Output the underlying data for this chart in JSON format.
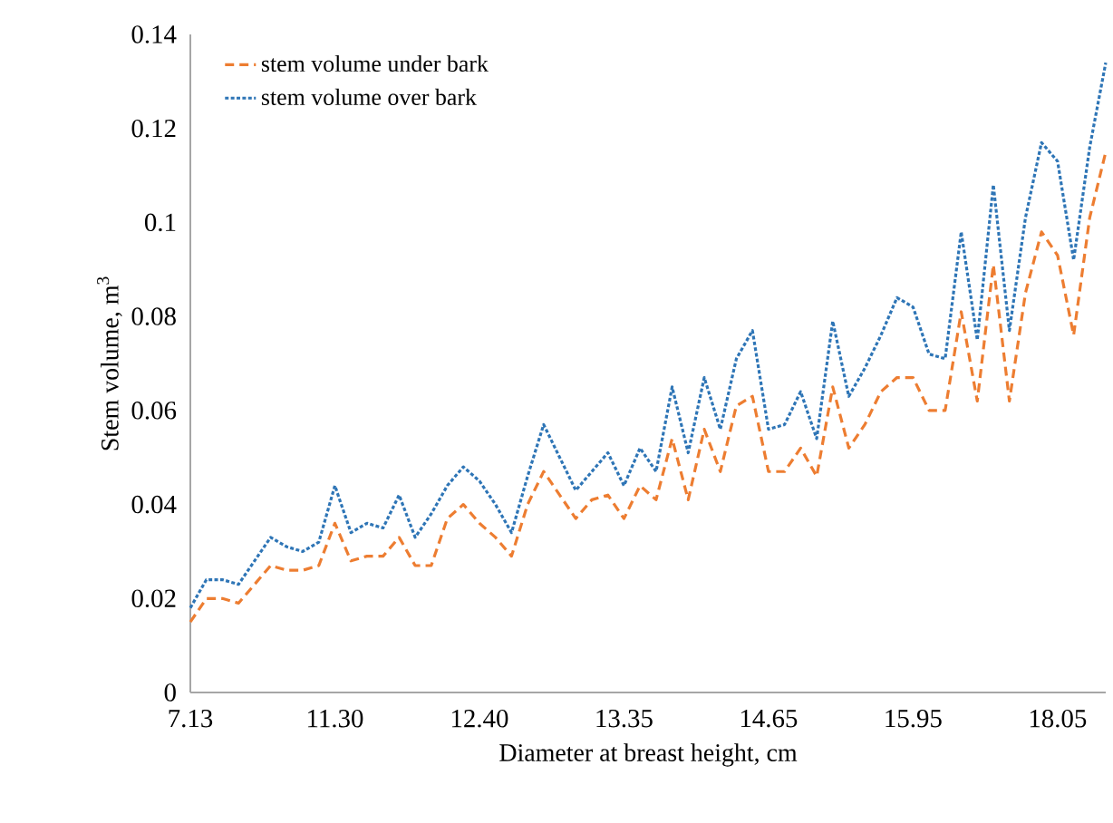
{
  "chart_data": {
    "type": "line",
    "xlabel": "Diameter at breast height, cm",
    "ylabel": "Stem volume, m$^{3}$",
    "categories": [
      "7.13",
      null,
      null,
      null,
      null,
      null,
      null,
      null,
      null,
      "11.30",
      null,
      null,
      null,
      null,
      null,
      null,
      null,
      null,
      "12.40",
      null,
      null,
      null,
      null,
      null,
      null,
      null,
      null,
      "13.35",
      null,
      null,
      null,
      null,
      null,
      null,
      null,
      null,
      "14.65",
      null,
      null,
      null,
      null,
      null,
      null,
      null,
      null,
      "15.95",
      null,
      null,
      null,
      null,
      null,
      null,
      null,
      null,
      "18.05",
      null,
      null,
      null
    ],
    "series": [
      {
        "name": "stem volume under bark",
        "color": "#ed7d31",
        "line_style": "dashed",
        "values": [
          0.015,
          0.02,
          0.02,
          0.019,
          0.023,
          0.027,
          0.026,
          0.026,
          0.027,
          0.036,
          0.028,
          0.029,
          0.029,
          0.033,
          0.027,
          0.027,
          0.037,
          0.04,
          0.036,
          0.033,
          0.029,
          0.04,
          0.047,
          0.042,
          0.037,
          0.041,
          0.042,
          0.037,
          0.044,
          0.041,
          0.054,
          0.041,
          0.056,
          0.047,
          0.061,
          0.063,
          0.047,
          0.047,
          0.052,
          0.046,
          0.065,
          0.052,
          0.057,
          0.064,
          0.067,
          0.067,
          0.06,
          0.06,
          0.081,
          0.062,
          0.091,
          0.062,
          0.085,
          0.098,
          0.093,
          0.076,
          0.101,
          0.115
        ]
      },
      {
        "name": "stem volume over bark",
        "color": "#2e75b6",
        "line_style": "dotted",
        "values": [
          0.018,
          0.024,
          0.024,
          0.023,
          0.028,
          0.033,
          0.031,
          0.03,
          0.032,
          0.044,
          0.034,
          0.036,
          0.035,
          0.042,
          0.033,
          0.038,
          0.044,
          0.048,
          0.045,
          0.04,
          0.034,
          0.046,
          0.057,
          0.05,
          0.043,
          0.047,
          0.051,
          0.044,
          0.052,
          0.047,
          0.065,
          0.051,
          0.067,
          0.056,
          0.071,
          0.077,
          0.056,
          0.057,
          0.064,
          0.054,
          0.079,
          0.063,
          0.069,
          0.076,
          0.084,
          0.082,
          0.072,
          0.071,
          0.098,
          0.075,
          0.108,
          0.077,
          0.101,
          0.117,
          0.113,
          0.092,
          0.116,
          0.134
        ]
      }
    ],
    "ylim": [
      0,
      0.14
    ],
    "yticks": [
      0,
      0.02,
      0.04,
      0.06,
      0.08,
      0.1,
      0.12,
      0.14
    ],
    "legend": "top left",
    "grid": false,
    "marker": "none"
  }
}
